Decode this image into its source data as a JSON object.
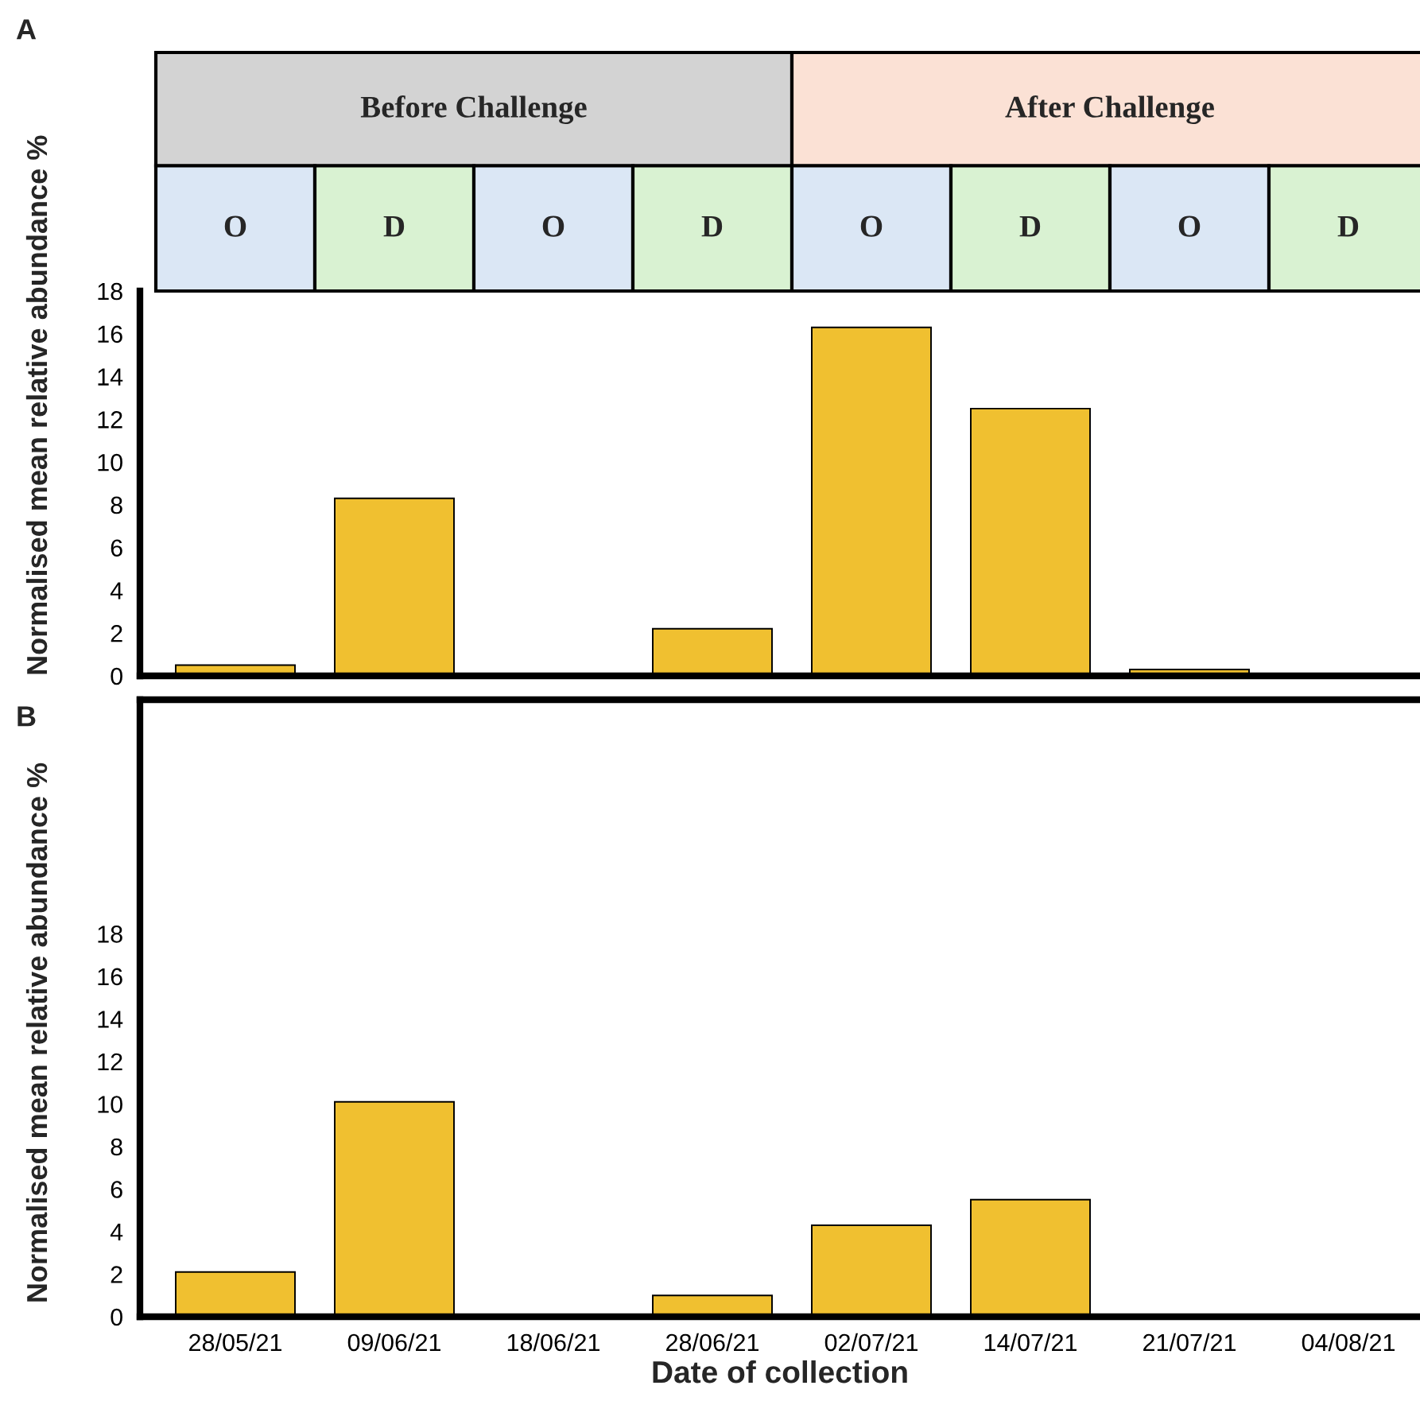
{
  "chart_data": [
    {
      "type": "bar",
      "title": "A",
      "ylabel": "Normalised mean relative abundance %",
      "categories": [
        null,
        null,
        null,
        null,
        null,
        null,
        null,
        null
      ],
      "values": [
        0.5,
        8.3,
        0,
        2.2,
        16.3,
        12.5,
        0.3,
        0
      ],
      "color": "#f0c030",
      "ylim": [
        0,
        18
      ],
      "yticks": [
        0,
        2,
        4,
        6,
        8,
        10,
        12,
        14,
        16,
        18
      ],
      "tick_labels": "y",
      "grid": false,
      "legend": false,
      "annotations": [
        "Before Challenge",
        "After Challenge",
        "O",
        "D",
        "O",
        "D",
        "O",
        "D",
        "O",
        "D"
      ]
    },
    {
      "type": "bar",
      "title": "B",
      "ylabel": "Normalised mean relative abundance %",
      "xlabel": "Date of collection",
      "categories": [
        "28/05/21",
        "09/06/21",
        "18/06/21",
        "28/06/21",
        "02/07/21",
        "14/07/21",
        "21/07/21",
        "04/08/21"
      ],
      "values": [
        2.1,
        10.1,
        0,
        1.0,
        4.3,
        5.5,
        0,
        0
      ],
      "color": "#f0c030",
      "ylim": [
        0,
        29
      ],
      "yticks": [
        0,
        2,
        4,
        6,
        8,
        10,
        12,
        14,
        16,
        18
      ],
      "grid": false,
      "legend": false
    }
  ]
}
